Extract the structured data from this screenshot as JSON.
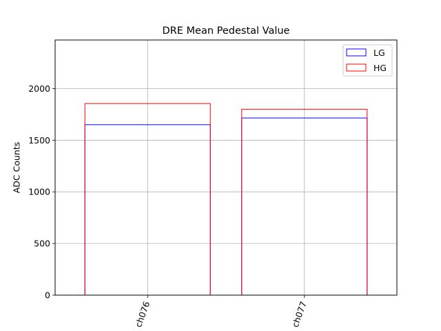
{
  "chart_data": {
    "type": "bar",
    "title": "DRE Mean Pedestal Value",
    "xlabel": "",
    "ylabel": "ADC Counts",
    "categories": [
      "ch076",
      "ch077"
    ],
    "series": [
      {
        "name": "LG",
        "values": [
          1650,
          1715
        ],
        "color": "#0000ff",
        "fill": "none"
      },
      {
        "name": "HG",
        "values": [
          1855,
          1800
        ],
        "color": "#ff0000",
        "fill": "none"
      }
    ],
    "ylim": [
      0,
      2470
    ],
    "yticks": [
      0,
      500,
      1000,
      1500,
      2000
    ],
    "xtick_rotation": 70,
    "grid": true,
    "legend_position": "upper right"
  }
}
